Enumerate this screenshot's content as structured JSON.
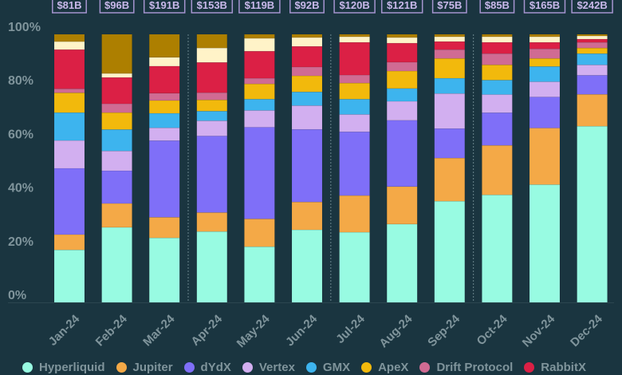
{
  "chart_data": {
    "type": "bar",
    "stacked": true,
    "normalized": true,
    "title": "",
    "xlabel": "",
    "ylabel": "",
    "ylim": [
      0,
      100
    ],
    "yticks": [
      "0%",
      "20%",
      "40%",
      "60%",
      "80%",
      "100%"
    ],
    "grid": false,
    "legend_position": "bottom",
    "categories": [
      "Jan-24",
      "Feb-24",
      "Mar-24",
      "Apr-24",
      "May-24",
      "Jun-24",
      "Jul-24",
      "Aug-24",
      "Sep-24",
      "Oct-24",
      "Nov-24",
      "Dec-24"
    ],
    "totals": [
      "$81B",
      "$96B",
      "$191B",
      "$153B",
      "$119B",
      "$92B",
      "$120B",
      "$121B",
      "$75B",
      "$85B",
      "$165B",
      "$242B"
    ],
    "quarter_separators_after": [
      "Mar-24",
      "Jun-24",
      "Sep-24"
    ],
    "series": [
      {
        "name": "Hyperliquid",
        "color": "#98fbe2",
        "in_legend": true,
        "values": [
          19.6,
          28.0,
          24.1,
          26.5,
          20.8,
          27.1,
          26.2,
          29.2,
          37.8,
          40.2,
          44.0,
          65.8
        ]
      },
      {
        "name": "Jupiter",
        "color": "#f4a947",
        "in_legend": true,
        "values": [
          5.7,
          8.9,
          7.7,
          7.1,
          10.4,
          10.4,
          13.7,
          14.0,
          16.1,
          18.5,
          21.1,
          11.9
        ]
      },
      {
        "name": "dYdX",
        "color": "#7f6ff8",
        "in_legend": true,
        "values": [
          24.7,
          12.2,
          28.6,
          28.6,
          34.2,
          27.1,
          23.8,
          24.7,
          11.0,
          12.2,
          11.6,
          7.1
        ]
      },
      {
        "name": "Vertex",
        "color": "#d2aff0",
        "in_legend": true,
        "values": [
          10.4,
          7.4,
          4.8,
          5.7,
          6.3,
          8.9,
          6.5,
          7.1,
          13.1,
          6.8,
          5.7,
          3.9
        ]
      },
      {
        "name": "GMX",
        "color": "#3db4ee",
        "in_legend": true,
        "values": [
          10.4,
          8.0,
          5.4,
          3.6,
          4.2,
          5.1,
          5.7,
          4.8,
          5.7,
          5.4,
          5.7,
          4.2
        ]
      },
      {
        "name": "ApeX",
        "color": "#f2b90c",
        "in_legend": true,
        "values": [
          7.4,
          6.3,
          4.8,
          4.2,
          5.7,
          6.0,
          6.0,
          6.5,
          7.4,
          5.7,
          3.0,
          2.1
        ]
      },
      {
        "name": "Drift Protocol",
        "color": "#d06b93",
        "in_legend": true,
        "values": [
          1.5,
          3.3,
          2.7,
          2.7,
          2.1,
          3.3,
          3.0,
          3.3,
          3.3,
          4.2,
          3.6,
          2.1
        ]
      },
      {
        "name": "RabbitX",
        "color": "#db2045",
        "in_legend": true,
        "values": [
          14.6,
          9.8,
          10.1,
          11.3,
          10.1,
          7.7,
          12.2,
          7.1,
          3.0,
          4.2,
          2.4,
          1.2
        ]
      },
      {
        "name": "",
        "color": "#fff3c8",
        "in_legend": false,
        "values": [
          3.0,
          1.5,
          3.3,
          5.4,
          4.8,
          3.3,
          2.1,
          2.1,
          1.8,
          2.1,
          2.1,
          1.2
        ]
      },
      {
        "name": "",
        "color": "#ad7f00",
        "in_legend": false,
        "values": [
          2.7,
          14.6,
          8.6,
          5.1,
          1.5,
          1.2,
          0.9,
          1.2,
          0.9,
          0.9,
          0.9,
          0.6
        ]
      }
    ]
  },
  "legend": {
    "items": [
      {
        "label": "Hyperliquid",
        "color": "#98fbe2"
      },
      {
        "label": "Jupiter",
        "color": "#f4a947"
      },
      {
        "label": "dYdX",
        "color": "#7f6ff8"
      },
      {
        "label": "Vertex",
        "color": "#d2aff0"
      },
      {
        "label": "GMX",
        "color": "#3db4ee"
      },
      {
        "label": "ApeX",
        "color": "#f2b90c"
      },
      {
        "label": "Drift Protocol",
        "color": "#d06b93"
      },
      {
        "label": "RabbitX",
        "color": "#db2045"
      }
    ]
  }
}
